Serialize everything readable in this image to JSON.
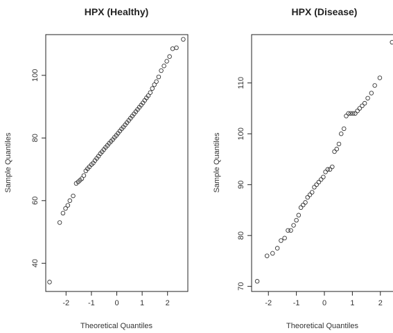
{
  "chart_data": [
    {
      "type": "scatter",
      "title": "HPX (Healthy)",
      "xlabel": "Theoretical Quantiles",
      "ylabel": "Sample Quantiles",
      "xlim": [
        -2.8,
        2.8
      ],
      "ylim": [
        31,
        113
      ],
      "xticks": [
        -2,
        -1,
        0,
        1,
        2
      ],
      "yticks": [
        40,
        60,
        80,
        100
      ],
      "grid": false,
      "points": [
        [
          -2.65,
          34
        ],
        [
          -2.25,
          53
        ],
        [
          -2.12,
          56
        ],
        [
          -2.02,
          57.5
        ],
        [
          -1.93,
          58.5
        ],
        [
          -1.85,
          60
        ],
        [
          -1.72,
          61.5
        ],
        [
          -1.6,
          65.5
        ],
        [
          -1.52,
          66
        ],
        [
          -1.45,
          66.5
        ],
        [
          -1.38,
          67
        ],
        [
          -1.3,
          68
        ],
        [
          -1.22,
          69.5
        ],
        [
          -1.15,
          70.2
        ],
        [
          -1.08,
          70.8
        ],
        [
          -1.0,
          71.5
        ],
        [
          -0.93,
          72
        ],
        [
          -0.86,
          72.8
        ],
        [
          -0.79,
          73.5
        ],
        [
          -0.72,
          74.2
        ],
        [
          -0.65,
          75
        ],
        [
          -0.58,
          75.6
        ],
        [
          -0.51,
          76.3
        ],
        [
          -0.44,
          77
        ],
        [
          -0.37,
          77.6
        ],
        [
          -0.3,
          78.3
        ],
        [
          -0.23,
          78.9
        ],
        [
          -0.16,
          79.5
        ],
        [
          -0.09,
          80.2
        ],
        [
          -0.02,
          80.8
        ],
        [
          0.05,
          81.5
        ],
        [
          0.12,
          82.2
        ],
        [
          0.19,
          82.9
        ],
        [
          0.26,
          83.5
        ],
        [
          0.33,
          84.2
        ],
        [
          0.4,
          84.9
        ],
        [
          0.47,
          85.6
        ],
        [
          0.54,
          86.3
        ],
        [
          0.61,
          87
        ],
        [
          0.68,
          87.7
        ],
        [
          0.75,
          88.4
        ],
        [
          0.82,
          89.1
        ],
        [
          0.89,
          89.8
        ],
        [
          0.96,
          90.5
        ],
        [
          1.03,
          91.2
        ],
        [
          1.1,
          92
        ],
        [
          1.17,
          92.8
        ],
        [
          1.24,
          93.5
        ],
        [
          1.32,
          94.5
        ],
        [
          1.4,
          95.8
        ],
        [
          1.48,
          97
        ],
        [
          1.56,
          98
        ],
        [
          1.65,
          99.5
        ],
        [
          1.75,
          101.5
        ],
        [
          1.86,
          103
        ],
        [
          1.97,
          104.5
        ],
        [
          2.08,
          106
        ],
        [
          2.2,
          108.5
        ],
        [
          2.35,
          108.8
        ],
        [
          2.62,
          111.5
        ]
      ]
    },
    {
      "type": "scatter",
      "title": "HPX (Disease)",
      "xlabel": "Theoretical Quantiles",
      "ylabel": "Sample Quantiles",
      "xlim": [
        -2.6,
        2.6
      ],
      "ylim": [
        69,
        119.5
      ],
      "xticks": [
        -2,
        -1,
        0,
        1,
        2
      ],
      "yticks": [
        70,
        80,
        90,
        100,
        110
      ],
      "grid": false,
      "points": [
        [
          -2.4,
          71
        ],
        [
          -2.05,
          76
        ],
        [
          -1.85,
          76.5
        ],
        [
          -1.68,
          77.5
        ],
        [
          -1.55,
          79
        ],
        [
          -1.42,
          79.5
        ],
        [
          -1.3,
          81
        ],
        [
          -1.2,
          81
        ],
        [
          -1.1,
          82
        ],
        [
          -1.0,
          83
        ],
        [
          -0.92,
          84
        ],
        [
          -0.84,
          85.5
        ],
        [
          -0.76,
          86
        ],
        [
          -0.68,
          86.5
        ],
        [
          -0.6,
          87.5
        ],
        [
          -0.52,
          88
        ],
        [
          -0.44,
          88.5
        ],
        [
          -0.36,
          89.5
        ],
        [
          -0.28,
          90
        ],
        [
          -0.2,
          90.5
        ],
        [
          -0.12,
          91
        ],
        [
          -0.04,
          91.5
        ],
        [
          0.04,
          92.5
        ],
        [
          0.12,
          93
        ],
        [
          0.2,
          93
        ],
        [
          0.28,
          93.5
        ],
        [
          0.36,
          96.5
        ],
        [
          0.44,
          97
        ],
        [
          0.52,
          98
        ],
        [
          0.6,
          100
        ],
        [
          0.7,
          101
        ],
        [
          0.78,
          103.5
        ],
        [
          0.86,
          104
        ],
        [
          0.94,
          104
        ],
        [
          1.02,
          104
        ],
        [
          1.1,
          104
        ],
        [
          1.18,
          104.5
        ],
        [
          1.26,
          105
        ],
        [
          1.35,
          105.5
        ],
        [
          1.44,
          106
        ],
        [
          1.55,
          107
        ],
        [
          1.68,
          108
        ],
        [
          1.8,
          109.5
        ],
        [
          1.98,
          111
        ],
        [
          2.42,
          118
        ]
      ]
    }
  ]
}
